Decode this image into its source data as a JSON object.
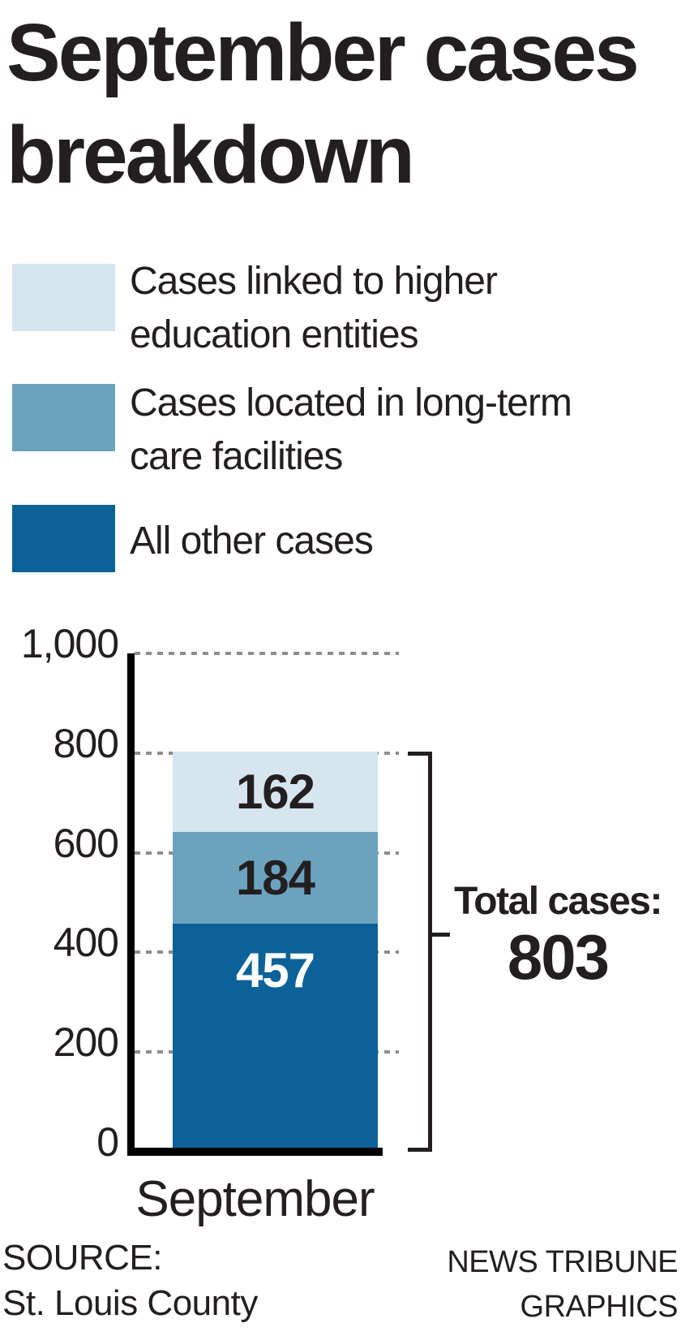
{
  "title": {
    "line1": "September cases",
    "line2": "breakdown"
  },
  "legend": [
    {
      "line1": "Cases linked to higher",
      "line2": "education entities",
      "color": "#d7e5ef"
    },
    {
      "line1": "Cases located in long-term",
      "line2": "care facilities",
      "color": "#6ba3bf"
    },
    {
      "line1": "All other cases",
      "line2": "",
      "color": "#0c6298"
    }
  ],
  "chart_data": {
    "type": "bar",
    "stacked": true,
    "categories": [
      "September"
    ],
    "series": [
      {
        "name": "All other cases",
        "values": [
          457
        ],
        "color": "#0c6298",
        "label_color": "#ffffff",
        "label_align": "top"
      },
      {
        "name": "Cases located in long-term care facilities",
        "values": [
          184
        ],
        "color": "#6ba3bf",
        "label_color": "#231f20",
        "label_align": "center"
      },
      {
        "name": "Cases linked to higher education entities",
        "values": [
          162
        ],
        "color": "#d7e5ef",
        "label_color": "#231f20",
        "label_align": "center"
      }
    ],
    "total": {
      "label": "Total cases:",
      "value": "803"
    },
    "xlabel": "September",
    "ylim": [
      0,
      1000
    ],
    "yticks": [
      {
        "label": "0",
        "value": 0
      },
      {
        "label": "200",
        "value": 200
      },
      {
        "label": "400",
        "value": 400
      },
      {
        "label": "600",
        "value": 600
      },
      {
        "label": "800",
        "value": 800
      },
      {
        "label": "1,000",
        "value": 1000
      }
    ],
    "grid": "dashed-horizontal",
    "legend_position": "top"
  },
  "footer": {
    "source_line1": "SOURCE:",
    "source_line2": "St. Louis County",
    "credit_line1": "NEWS TRIBUNE",
    "credit_line2": "GRAPHICS"
  },
  "colors": {
    "text": "#231f20",
    "axis": "#000000",
    "gridline": "#8b8d90",
    "bar_dark": "#0c6298",
    "bar_medium": "#6ba3bf",
    "bar_light": "#d7e5ef"
  }
}
